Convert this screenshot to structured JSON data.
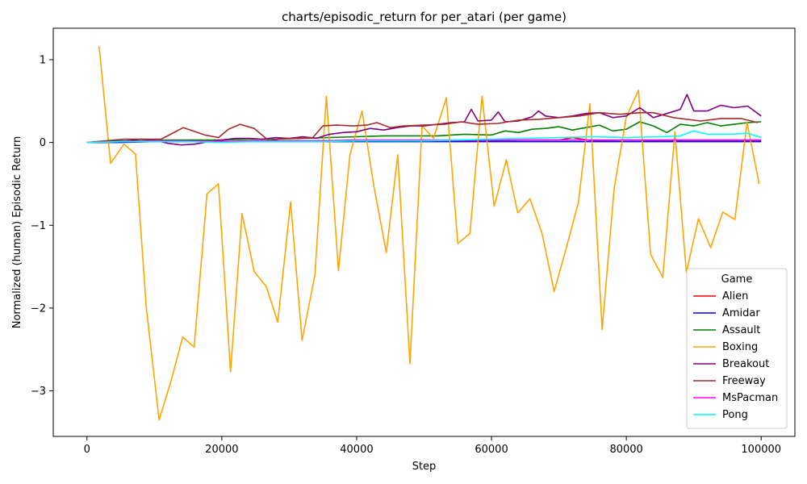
{
  "chart_data": {
    "type": "line",
    "title": "charts/episodic_return for per_atari (per game)",
    "xlabel": "Step",
    "ylabel": "Normalized (human) Episodic Return",
    "xlim": [
      -5000,
      105000
    ],
    "ylim": [
      -3.55,
      1.38
    ],
    "xticks": [
      0,
      20000,
      40000,
      60000,
      80000,
      100000
    ],
    "xtick_labels": [
      "0",
      "20000",
      "40000",
      "60000",
      "80000",
      "100000"
    ],
    "yticks": [
      -3,
      -2,
      -1,
      0,
      1
    ],
    "ytick_labels": [
      "−3",
      "−2",
      "−1",
      "0",
      "1"
    ],
    "grid": false,
    "legend": {
      "title": "Game",
      "position": "lower-right"
    },
    "series": [
      {
        "name": "Alien",
        "color": "#ff0000",
        "x": [
          0,
          5000,
          10000,
          15000,
          20000,
          25000,
          30000,
          35000,
          40000,
          45000,
          50000,
          55000,
          60000,
          65000,
          70000,
          72000,
          75000,
          80000,
          85000,
          90000,
          95000,
          100000
        ],
        "y": [
          0.0,
          0.01,
          0.01,
          0.02,
          0.01,
          0.02,
          0.02,
          0.02,
          0.02,
          0.02,
          0.02,
          0.02,
          0.02,
          0.03,
          0.03,
          0.06,
          0.02,
          0.03,
          0.02,
          0.02,
          0.02,
          0.02
        ]
      },
      {
        "name": "Amidar",
        "color": "#0000ff",
        "x": [
          0,
          5000,
          10000,
          15000,
          20000,
          25000,
          30000,
          35000,
          40000,
          45000,
          50000,
          55000,
          60000,
          65000,
          70000,
          75000,
          80000,
          85000,
          90000,
          95000,
          100000
        ],
        "y": [
          0.0,
          0.0,
          0.01,
          0.01,
          0.01,
          0.01,
          0.01,
          0.01,
          0.01,
          0.01,
          0.01,
          0.01,
          0.01,
          0.01,
          0.01,
          0.01,
          0.01,
          0.01,
          0.01,
          0.01,
          0.01
        ]
      },
      {
        "name": "Assault",
        "color": "#008000",
        "x": [
          0,
          4000,
          8000,
          12000,
          16000,
          20000,
          24000,
          28000,
          32000,
          36000,
          40000,
          44000,
          48000,
          52000,
          56000,
          60000,
          62000,
          64000,
          66000,
          68000,
          70000,
          72000,
          74000,
          76000,
          78000,
          80000,
          82000,
          84000,
          86000,
          88000,
          90000,
          92000,
          94000,
          96000,
          98000,
          100000
        ],
        "y": [
          0.0,
          0.02,
          0.02,
          0.03,
          0.03,
          0.03,
          0.04,
          0.04,
          0.05,
          0.06,
          0.07,
          0.08,
          0.08,
          0.08,
          0.1,
          0.09,
          0.14,
          0.12,
          0.16,
          0.17,
          0.19,
          0.15,
          0.18,
          0.21,
          0.14,
          0.16,
          0.25,
          0.2,
          0.12,
          0.22,
          0.2,
          0.24,
          0.2,
          0.22,
          0.24,
          0.25
        ]
      },
      {
        "name": "Boxing",
        "color": "#ffa500",
        "x": [
          1800,
          3500,
          5500,
          7200,
          8800,
          10700,
          12500,
          14200,
          15900,
          17800,
          19500,
          21300,
          23000,
          24800,
          26600,
          28300,
          30200,
          31900,
          33800,
          35500,
          37300,
          39000,
          40800,
          42600,
          44400,
          46100,
          47900,
          49700,
          51400,
          53300,
          55000,
          56800,
          58600,
          60400,
          62200,
          63900,
          65700,
          67500,
          69300,
          71100,
          72900,
          74600,
          76400,
          78200,
          80000,
          81800,
          83600,
          85400,
          87200,
          88900,
          90700,
          92500,
          94300,
          96100,
          97900,
          99700
        ],
        "y": [
          1.16,
          -0.25,
          -0.02,
          -0.14,
          -2.0,
          -3.35,
          -2.87,
          -2.35,
          -2.47,
          -0.62,
          -0.5,
          -2.77,
          -0.86,
          -1.56,
          -1.74,
          -2.17,
          -0.72,
          -2.39,
          -1.6,
          0.56,
          -1.55,
          -0.15,
          0.38,
          -0.55,
          -1.33,
          -0.15,
          -2.67,
          0.2,
          0.05,
          0.54,
          -1.22,
          -1.1,
          0.56,
          -0.77,
          -0.21,
          -0.85,
          -0.68,
          -1.1,
          -1.8,
          -1.27,
          -0.72,
          0.47,
          -2.26,
          -0.55,
          0.31,
          0.63,
          -1.35,
          -1.63,
          0.13,
          -1.57,
          -0.92,
          -1.27,
          -0.84,
          -0.93,
          0.24,
          -0.5
        ]
      },
      {
        "name": "Breakout",
        "color": "#800080",
        "x": [
          0,
          2000,
          4000,
          6000,
          8000,
          10000,
          12000,
          14000,
          16000,
          18000,
          20000,
          22000,
          24000,
          26000,
          28000,
          30000,
          32000,
          34000,
          36000,
          38000,
          40000,
          42000,
          44000,
          46000,
          48000,
          50000,
          52000,
          54000,
          56000,
          57000,
          58000,
          60000,
          61000,
          62000,
          64000,
          66000,
          67000,
          68000,
          70000,
          72000,
          74000,
          76000,
          78000,
          80000,
          82000,
          84000,
          86000,
          88000,
          89000,
          90000,
          92000,
          94000,
          96000,
          98000,
          100000
        ],
        "y": [
          0.0,
          0.0,
          0.01,
          0.02,
          0.04,
          0.03,
          -0.01,
          -0.03,
          -0.02,
          0.01,
          0.03,
          0.05,
          0.05,
          0.04,
          0.06,
          0.05,
          0.07,
          0.05,
          0.1,
          0.12,
          0.13,
          0.17,
          0.15,
          0.18,
          0.2,
          0.2,
          0.22,
          0.24,
          0.25,
          0.4,
          0.26,
          0.27,
          0.37,
          0.25,
          0.26,
          0.31,
          0.38,
          0.32,
          0.3,
          0.32,
          0.35,
          0.36,
          0.3,
          0.32,
          0.42,
          0.3,
          0.35,
          0.4,
          0.58,
          0.38,
          0.38,
          0.45,
          0.42,
          0.44,
          0.32
        ]
      },
      {
        "name": "Freeway",
        "color": "#a52a2a",
        "x": [
          0,
          5500,
          11000,
          14300,
          17500,
          19500,
          21000,
          22700,
          24800,
          27000,
          29000,
          31500,
          33500,
          35000,
          37000,
          39500,
          41500,
          43000,
          45000,
          47000,
          50000,
          53000,
          55500,
          58000,
          61000,
          64000,
          67000,
          70000,
          73000,
          76000,
          79000,
          82000,
          84000,
          87000,
          91000,
          94000,
          97000,
          99500
        ],
        "y": [
          0.0,
          0.04,
          0.04,
          0.18,
          0.09,
          0.06,
          0.16,
          0.22,
          0.17,
          0.02,
          0.05,
          0.05,
          0.06,
          0.2,
          0.21,
          0.2,
          0.21,
          0.24,
          0.18,
          0.2,
          0.21,
          0.22,
          0.25,
          0.22,
          0.23,
          0.27,
          0.28,
          0.3,
          0.32,
          0.36,
          0.34,
          0.36,
          0.36,
          0.3,
          0.26,
          0.29,
          0.29,
          0.24
        ]
      },
      {
        "name": "MsPacman",
        "color": "#ff00ff",
        "x": [
          0,
          5000,
          10000,
          15000,
          20000,
          25000,
          30000,
          35000,
          40000,
          45000,
          50000,
          55000,
          60000,
          65000,
          70000,
          75000,
          80000,
          85000,
          90000,
          95000,
          100000
        ],
        "y": [
          0.0,
          0.01,
          0.02,
          0.02,
          0.01,
          0.02,
          0.02,
          0.02,
          0.03,
          0.03,
          0.03,
          0.03,
          0.03,
          0.03,
          0.03,
          0.03,
          0.03,
          0.03,
          0.03,
          0.03,
          0.03
        ]
      },
      {
        "name": "Pong",
        "color": "#00ffff",
        "x": [
          0,
          5000,
          10000,
          15000,
          20000,
          25000,
          30000,
          35000,
          40000,
          45000,
          50000,
          55000,
          60000,
          65000,
          70000,
          75000,
          80000,
          85000,
          88000,
          90000,
          92000,
          95000,
          98000,
          100000
        ],
        "y": [
          0.0,
          0.01,
          0.01,
          0.01,
          0.0,
          0.01,
          0.01,
          0.01,
          0.02,
          0.02,
          0.02,
          0.03,
          0.04,
          0.05,
          0.06,
          0.07,
          0.06,
          0.07,
          0.08,
          0.14,
          0.1,
          0.1,
          0.11,
          0.06
        ]
      }
    ]
  }
}
